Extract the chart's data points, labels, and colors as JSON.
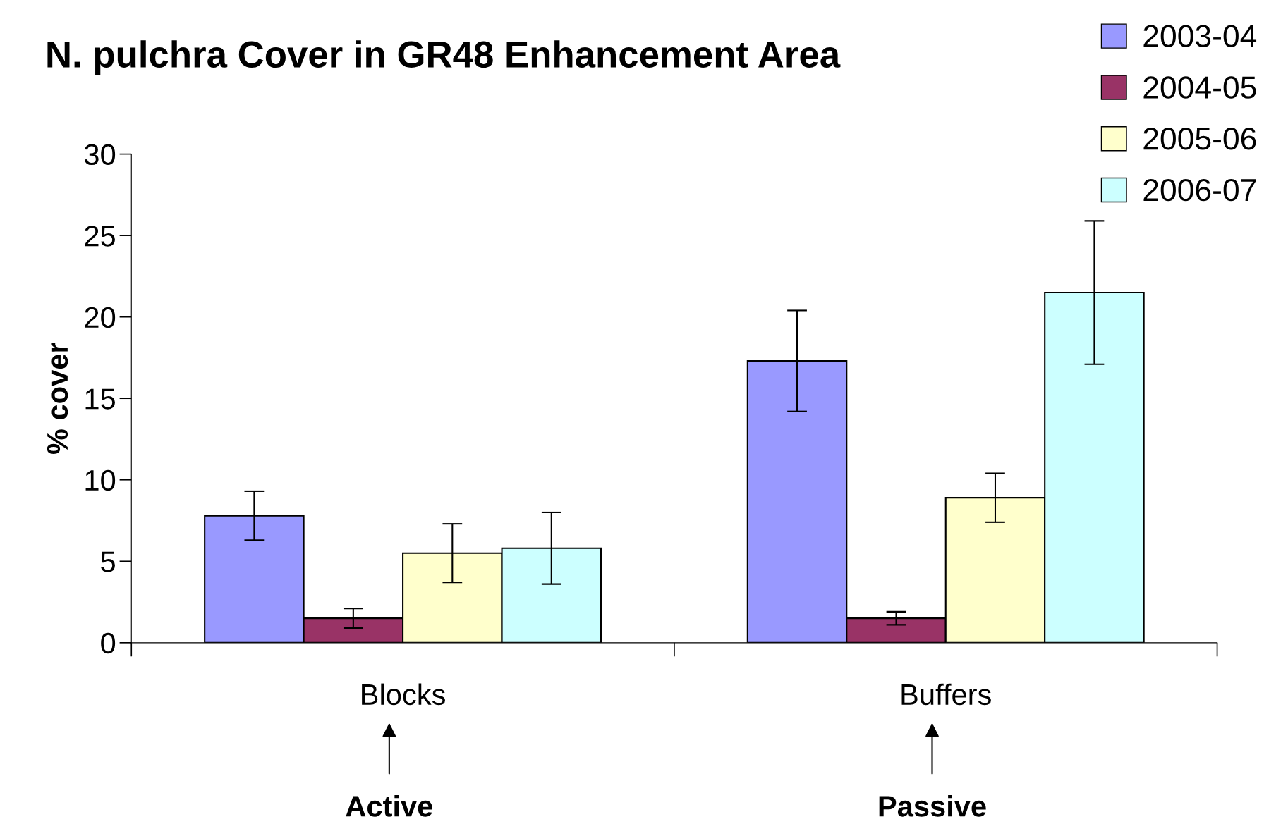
{
  "chart_data": {
    "type": "bar",
    "title": "N. pulchra Cover in GR48 Enhancement Area",
    "ylabel": "% cover",
    "categories": [
      "Blocks",
      "Buffers"
    ],
    "series": [
      {
        "name": "2003-04",
        "color": "#9999ff",
        "values": [
          7.8,
          17.3
        ],
        "errors": [
          1.5,
          3.1
        ]
      },
      {
        "name": "2004-05",
        "color": "#993366",
        "values": [
          1.5,
          1.5
        ],
        "errors": [
          0.6,
          0.4
        ]
      },
      {
        "name": "2005-06",
        "color": "#ffffcc",
        "values": [
          5.5,
          8.9
        ],
        "errors": [
          1.8,
          1.5
        ]
      },
      {
        "name": "2006-07",
        "color": "#ccffff",
        "values": [
          5.8,
          21.5
        ],
        "errors": [
          2.2,
          4.4
        ]
      }
    ],
    "ylim": [
      0,
      30
    ],
    "yticks": [
      0,
      5,
      10,
      15,
      20,
      25,
      30
    ],
    "grid": false,
    "legend": "top right",
    "annotations": [
      "Active",
      "Passive"
    ]
  }
}
